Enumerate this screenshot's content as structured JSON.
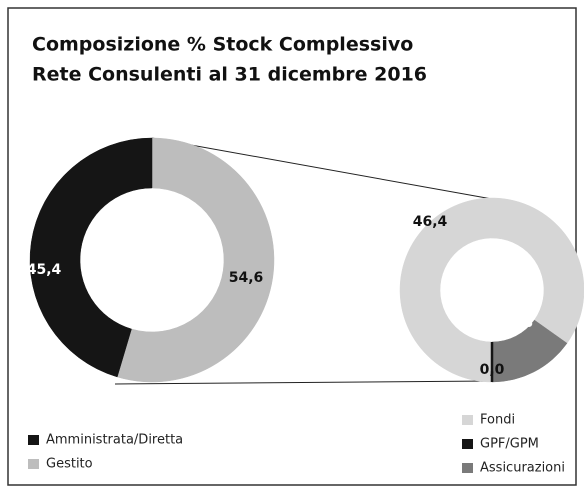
{
  "chart_data": [
    {
      "type": "donut",
      "title": "Composizione % Stock Complessivo",
      "subtitle": "Rete Consulenti al 31 dicembre 2016",
      "categories": [
        "Amministrata/Diretta",
        "Gestito"
      ],
      "values": [
        45.4,
        54.6
      ],
      "value_labels": [
        "45,4",
        "54,6"
      ],
      "colors": [
        "#151515",
        "#bdbdbd"
      ]
    },
    {
      "type": "donut",
      "categories": [
        "Fondi",
        "GPF/GPM",
        "Assicurazioni"
      ],
      "values": [
        46.4,
        0.0,
        8.3
      ],
      "value_labels": [
        "46,4",
        "0,0",
        "8,3"
      ],
      "colors": [
        "#d6d6d6",
        "#151515",
        "#7a7a7a"
      ]
    }
  ]
}
